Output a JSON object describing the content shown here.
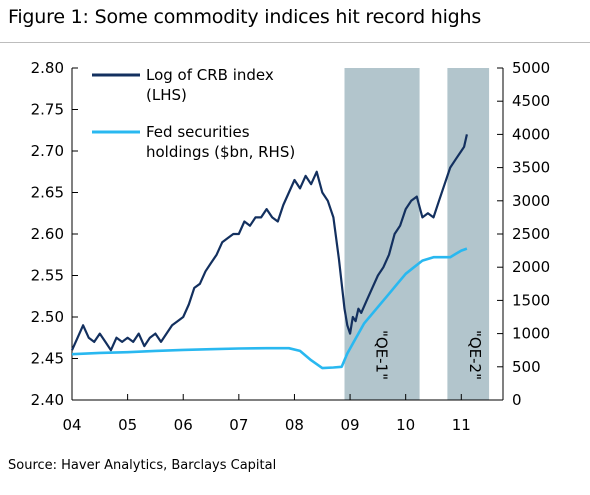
{
  "title": "Figure 1: Some commodity indices hit record highs",
  "source": "Source: Haver Analytics, Barclays Capital",
  "chart_data": {
    "type": "line",
    "x_ticks": [
      "04",
      "05",
      "06",
      "07",
      "08",
      "09",
      "10",
      "11"
    ],
    "xlim": [
      2004.0,
      2011.75
    ],
    "y_left": {
      "ylim": [
        2.4,
        2.8
      ],
      "ticks": [
        "2.40",
        "2.45",
        "2.50",
        "2.55",
        "2.60",
        "2.65",
        "2.70",
        "2.75",
        "2.80"
      ]
    },
    "y_right": {
      "ylim": [
        0,
        5000
      ],
      "ticks": [
        "0",
        "500",
        "1000",
        "1500",
        "2000",
        "2500",
        "3000",
        "3500",
        "4000",
        "4500",
        "5000"
      ]
    },
    "legend": {
      "position": "top-left",
      "entries": [
        "Log of CRB index (LHS)",
        "Fed securities holdings ($bn, RHS)"
      ]
    },
    "legend_lines": [
      [
        "Log of CRB index",
        "(LHS)"
      ],
      [
        "Fed securities",
        "holdings ($bn, RHS)"
      ]
    ],
    "shaded_regions": [
      {
        "label": "\"QE-1\"",
        "start": 2008.9,
        "end": 2010.25
      },
      {
        "label": "\"QE-2\"",
        "start": 2010.75,
        "end": 2011.5
      }
    ],
    "colors": {
      "crb": "#13305f",
      "fed": "#29b8f0",
      "shade": "#b2c5cc"
    },
    "series": [
      {
        "name": "Log of CRB index (LHS)",
        "axis": "left",
        "x": [
          2004.0,
          2004.1,
          2004.2,
          2004.3,
          2004.4,
          2004.5,
          2004.6,
          2004.7,
          2004.8,
          2004.9,
          2005.0,
          2005.1,
          2005.2,
          2005.3,
          2005.4,
          2005.5,
          2005.6,
          2005.7,
          2005.8,
          2005.9,
          2006.0,
          2006.1,
          2006.2,
          2006.3,
          2006.4,
          2006.5,
          2006.6,
          2006.7,
          2006.8,
          2006.9,
          2007.0,
          2007.1,
          2007.2,
          2007.3,
          2007.4,
          2007.5,
          2007.6,
          2007.7,
          2007.8,
          2007.9,
          2008.0,
          2008.1,
          2008.2,
          2008.3,
          2008.4,
          2008.5,
          2008.6,
          2008.7,
          2008.8,
          2008.85,
          2008.9,
          2008.95,
          2009.0,
          2009.05,
          2009.1,
          2009.15,
          2009.2,
          2009.3,
          2009.4,
          2009.5,
          2009.6,
          2009.7,
          2009.8,
          2009.9,
          2010.0,
          2010.1,
          2010.2,
          2010.3,
          2010.4,
          2010.5,
          2010.6,
          2010.7,
          2010.8,
          2010.9,
          2011.0,
          2011.05,
          2011.1
        ],
        "values": [
          2.46,
          2.475,
          2.49,
          2.475,
          2.47,
          2.48,
          2.47,
          2.46,
          2.475,
          2.47,
          2.475,
          2.47,
          2.48,
          2.465,
          2.475,
          2.48,
          2.47,
          2.48,
          2.49,
          2.495,
          2.5,
          2.515,
          2.535,
          2.54,
          2.555,
          2.565,
          2.575,
          2.59,
          2.595,
          2.6,
          2.6,
          2.615,
          2.61,
          2.62,
          2.62,
          2.63,
          2.62,
          2.615,
          2.635,
          2.65,
          2.665,
          2.655,
          2.67,
          2.66,
          2.675,
          2.65,
          2.64,
          2.62,
          2.57,
          2.54,
          2.51,
          2.49,
          2.48,
          2.5,
          2.495,
          2.51,
          2.505,
          2.52,
          2.535,
          2.55,
          2.56,
          2.575,
          2.6,
          2.61,
          2.63,
          2.64,
          2.645,
          2.62,
          2.625,
          2.62,
          2.64,
          2.66,
          2.68,
          2.69,
          2.7,
          2.705,
          2.72
        ]
      },
      {
        "name": "Fed securities holdings ($bn, RHS)",
        "axis": "right",
        "x": [
          2004.0,
          2004.5,
          2005.0,
          2005.5,
          2006.0,
          2006.5,
          2007.0,
          2007.5,
          2007.9,
          2008.1,
          2008.3,
          2008.5,
          2008.7,
          2008.85,
          2008.95,
          2009.05,
          2009.15,
          2009.25,
          2009.4,
          2009.55,
          2009.7,
          2009.85,
          2010.0,
          2010.15,
          2010.3,
          2010.5,
          2010.7,
          2010.8,
          2010.9,
          2011.0,
          2011.1
        ],
        "values": [
          690,
          710,
          720,
          740,
          755,
          765,
          775,
          780,
          780,
          740,
          600,
          480,
          490,
          500,
          700,
          850,
          1000,
          1150,
          1300,
          1450,
          1600,
          1750,
          1900,
          2000,
          2100,
          2150,
          2150,
          2150,
          2200,
          2250,
          2280
        ]
      }
    ]
  }
}
